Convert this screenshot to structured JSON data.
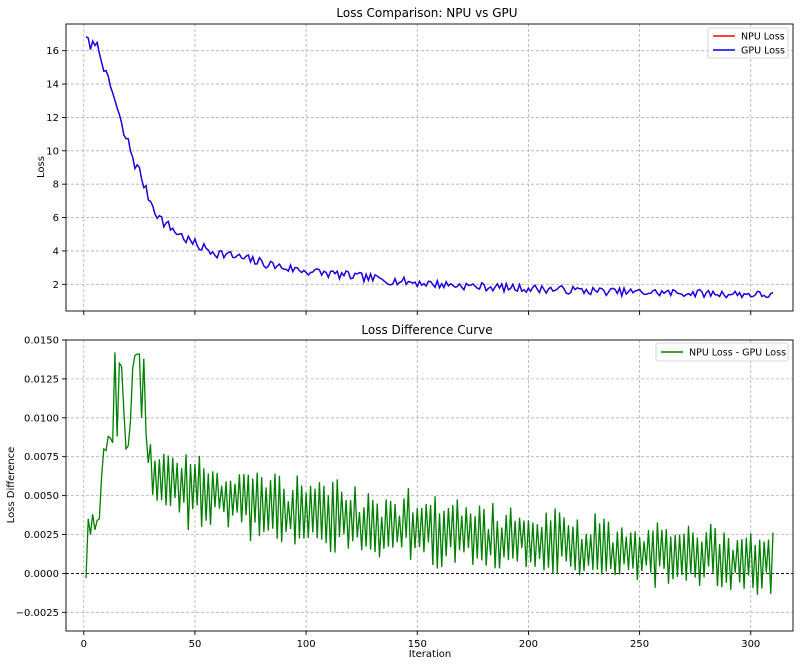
{
  "chart_data": [
    {
      "type": "line",
      "title": "Loss Comparison: NPU vs GPU",
      "xlabel": "",
      "ylabel": "Loss",
      "xlim": [
        -8,
        319
      ],
      "ylim": [
        0.4,
        17.6
      ],
      "xticks": [
        0,
        50,
        100,
        150,
        200,
        250,
        300
      ],
      "show_xtick_labels": false,
      "yticks": [
        2,
        4,
        6,
        8,
        10,
        12,
        14,
        16
      ],
      "grid": true,
      "legend": "top-right",
      "series": [
        {
          "name": "NPU Loss",
          "color": "#ff0000",
          "keypoints": [
            [
              1,
              17.0
            ],
            [
              3,
              16.0
            ],
            [
              5,
              16.6
            ],
            [
              8,
              15.6
            ],
            [
              10,
              14.5
            ],
            [
              13,
              13.5
            ],
            [
              15,
              12.5
            ],
            [
              18,
              11.0
            ],
            [
              20,
              10.5
            ],
            [
              23,
              9.2
            ],
            [
              25,
              8.8
            ],
            [
              28,
              7.6
            ],
            [
              30,
              7.0
            ],
            [
              33,
              6.2
            ],
            [
              36,
              5.7
            ],
            [
              40,
              5.3
            ],
            [
              45,
              4.8
            ],
            [
              50,
              4.4
            ],
            [
              55,
              4.1
            ],
            [
              60,
              3.9
            ],
            [
              70,
              3.6
            ],
            [
              80,
              3.3
            ],
            [
              90,
              3.0
            ],
            [
              100,
              2.8
            ],
            [
              120,
              2.5
            ],
            [
              140,
              2.2
            ],
            [
              160,
              2.0
            ],
            [
              180,
              1.85
            ],
            [
              200,
              1.75
            ],
            [
              220,
              1.65
            ],
            [
              240,
              1.55
            ],
            [
              260,
              1.5
            ],
            [
              280,
              1.45
            ],
            [
              300,
              1.4
            ],
            [
              310,
              1.35
            ]
          ],
          "noise": 0.32,
          "seed": 7
        },
        {
          "name": "GPU Loss",
          "color": "#0000ff",
          "keypoints": [
            [
              1,
              17.0
            ],
            [
              3,
              16.0
            ],
            [
              5,
              16.6
            ],
            [
              8,
              15.6
            ],
            [
              10,
              14.5
            ],
            [
              13,
              13.5
            ],
            [
              15,
              12.5
            ],
            [
              18,
              11.0
            ],
            [
              20,
              10.5
            ],
            [
              23,
              9.2
            ],
            [
              25,
              8.8
            ],
            [
              28,
              7.6
            ],
            [
              30,
              7.0
            ],
            [
              33,
              6.2
            ],
            [
              36,
              5.7
            ],
            [
              40,
              5.3
            ],
            [
              45,
              4.8
            ],
            [
              50,
              4.4
            ],
            [
              55,
              4.1
            ],
            [
              60,
              3.9
            ],
            [
              70,
              3.6
            ],
            [
              80,
              3.3
            ],
            [
              90,
              3.0
            ],
            [
              100,
              2.8
            ],
            [
              120,
              2.5
            ],
            [
              140,
              2.2
            ],
            [
              160,
              2.0
            ],
            [
              180,
              1.85
            ],
            [
              200,
              1.75
            ],
            [
              220,
              1.65
            ],
            [
              240,
              1.55
            ],
            [
              260,
              1.5
            ],
            [
              280,
              1.45
            ],
            [
              300,
              1.4
            ],
            [
              310,
              1.35
            ]
          ],
          "noise": 0.32,
          "seed": 7
        }
      ]
    },
    {
      "type": "line",
      "title": "Loss Difference Curve",
      "xlabel": "Iteration",
      "ylabel": "Loss Difference",
      "xlim": [
        -8,
        319
      ],
      "ylim": [
        -0.0037,
        0.015
      ],
      "xticks": [
        0,
        50,
        100,
        150,
        200,
        250,
        300
      ],
      "yticks": [
        -0.0025,
        0.0,
        0.0025,
        0.005,
        0.0075,
        0.01,
        0.0125,
        0.015
      ],
      "ytick_labels": [
        "−0.0025",
        "0.0000",
        "0.0025",
        "0.0050",
        "0.0075",
        "0.0100",
        "0.0125",
        "0.0150"
      ],
      "xtick_labels": [
        "0",
        "50",
        "100",
        "150",
        "200",
        "250",
        "300"
      ],
      "grid": true,
      "zero_line": true,
      "legend": "top-right",
      "series": [
        {
          "name": "NPU Loss - GPU Loss",
          "color": "#008000",
          "keypoints": [
            [
              1,
              -0.0003
            ],
            [
              2,
              0.0035
            ],
            [
              3,
              0.0025
            ],
            [
              4,
              0.0038
            ],
            [
              5,
              0.0028
            ],
            [
              6,
              0.0034
            ],
            [
              7,
              0.0035
            ],
            [
              8,
              0.0062
            ],
            [
              9,
              0.008
            ],
            [
              10,
              0.0079
            ],
            [
              11,
              0.0088
            ],
            [
              12,
              0.0087
            ],
            [
              13,
              0.0084
            ],
            [
              14,
              0.0142
            ],
            [
              15,
              0.0088
            ],
            [
              16,
              0.0135
            ],
            [
              17,
              0.0133
            ],
            [
              18,
              0.0105
            ],
            [
              19,
              0.008
            ],
            [
              20,
              0.0082
            ],
            [
              21,
              0.0098
            ],
            [
              22,
              0.0132
            ],
            [
              23,
              0.014
            ],
            [
              24,
              0.0141
            ],
            [
              25,
              0.0141
            ],
            [
              26,
              0.01
            ],
            [
              27,
              0.0138
            ],
            [
              28,
              0.009
            ],
            [
              29,
              0.0071
            ],
            [
              30,
              0.0083
            ]
          ],
          "tail": {
            "from": 31,
            "to": 310,
            "start_mean": 0.0065,
            "end_mean": 0.0005,
            "start_amp": 0.0025,
            "end_amp": 0.0021,
            "seed": 11
          }
        }
      ]
    }
  ]
}
